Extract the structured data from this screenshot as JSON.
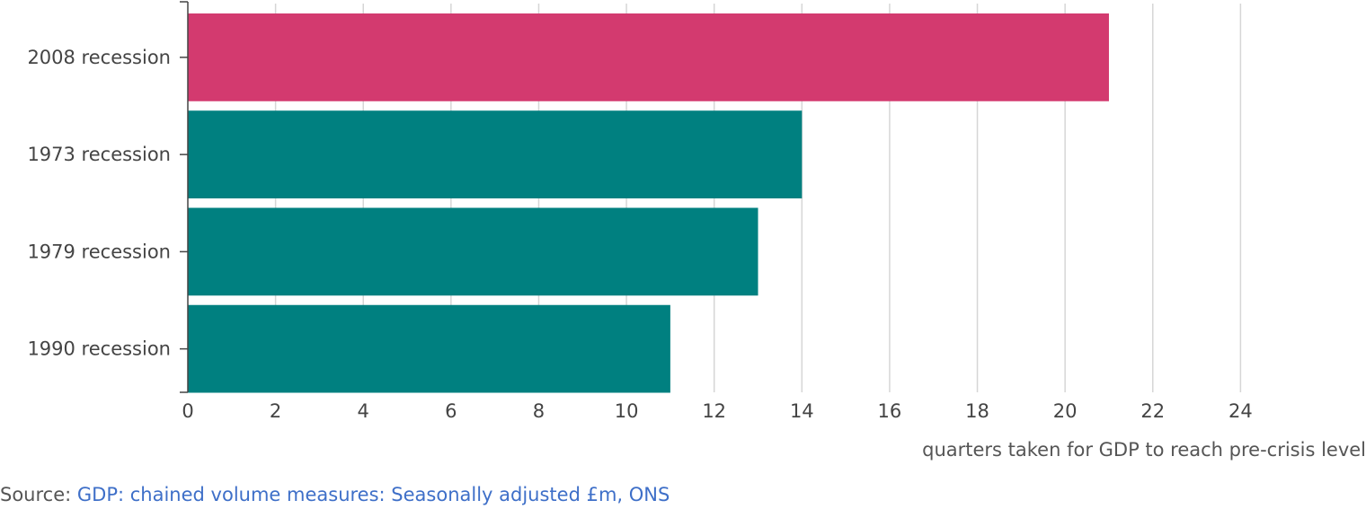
{
  "chart_data": {
    "type": "bar",
    "orientation": "horizontal",
    "categories": [
      "2008 recession",
      "1973 recession",
      "1979 recession",
      "1990 recession"
    ],
    "values": [
      21,
      14,
      13,
      11
    ],
    "bar_colors": [
      "#d33a6f",
      "#008080",
      "#008080",
      "#008080"
    ],
    "title": "",
    "xlabel": "quarters taken for GDP to reach pre-crisis level",
    "ylabel": "",
    "xlim": [
      0,
      26
    ],
    "xticks": [
      0,
      2,
      4,
      6,
      8,
      10,
      12,
      14,
      16,
      18,
      20,
      22,
      24
    ],
    "grid": "vertical",
    "legend": "none"
  },
  "source": {
    "prefix": "Source: ",
    "link_text": "GDP: chained volume measures: Seasonally adjusted £m, ONS",
    "link_color": "#3e6fc8"
  }
}
